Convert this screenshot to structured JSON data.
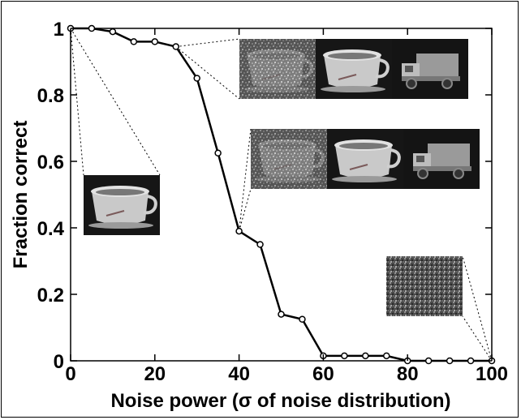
{
  "chart_data": {
    "type": "line",
    "title": "",
    "xlabel": "Noise power (σ of noise distribution)",
    "ylabel": "Fraction correct",
    "xlim": [
      0,
      100
    ],
    "ylim": [
      0,
      1
    ],
    "xticks": [
      "0",
      "20",
      "40",
      "60",
      "80",
      "100"
    ],
    "yticks": [
      "0",
      "0.2",
      "0.4",
      "0.6",
      "0.8",
      "1"
    ],
    "grid": false,
    "series": [
      {
        "x": [
          0,
          5,
          10,
          15,
          20,
          25,
          30,
          35,
          40,
          45,
          50,
          55,
          60,
          65,
          70,
          75,
          80,
          85,
          90,
          95,
          100
        ],
        "values": [
          1.0,
          1.0,
          0.99,
          0.96,
          0.96,
          0.945,
          0.85,
          0.625,
          0.39,
          0.35,
          0.14,
          0.125,
          0.015,
          0.015,
          0.015,
          0.015,
          0.0,
          0.0,
          0.0,
          0.0,
          0.0
        ]
      }
    ],
    "insets": [
      {
        "name": "clean-cup",
        "at_x": 0,
        "images": [
          "cup"
        ]
      },
      {
        "name": "noise-25",
        "at_x": 25,
        "images": [
          "noisy-cup",
          "cup",
          "truck"
        ]
      },
      {
        "name": "noise-40",
        "at_x": 40,
        "images": [
          "noisy-cup",
          "cup",
          "truck"
        ]
      },
      {
        "name": "noise-100",
        "at_x": 100,
        "images": [
          "noise"
        ]
      }
    ]
  },
  "colors": {
    "line": "#000000",
    "marker_fill": "#ffffff",
    "inset_bg": "#1a1a1a"
  }
}
